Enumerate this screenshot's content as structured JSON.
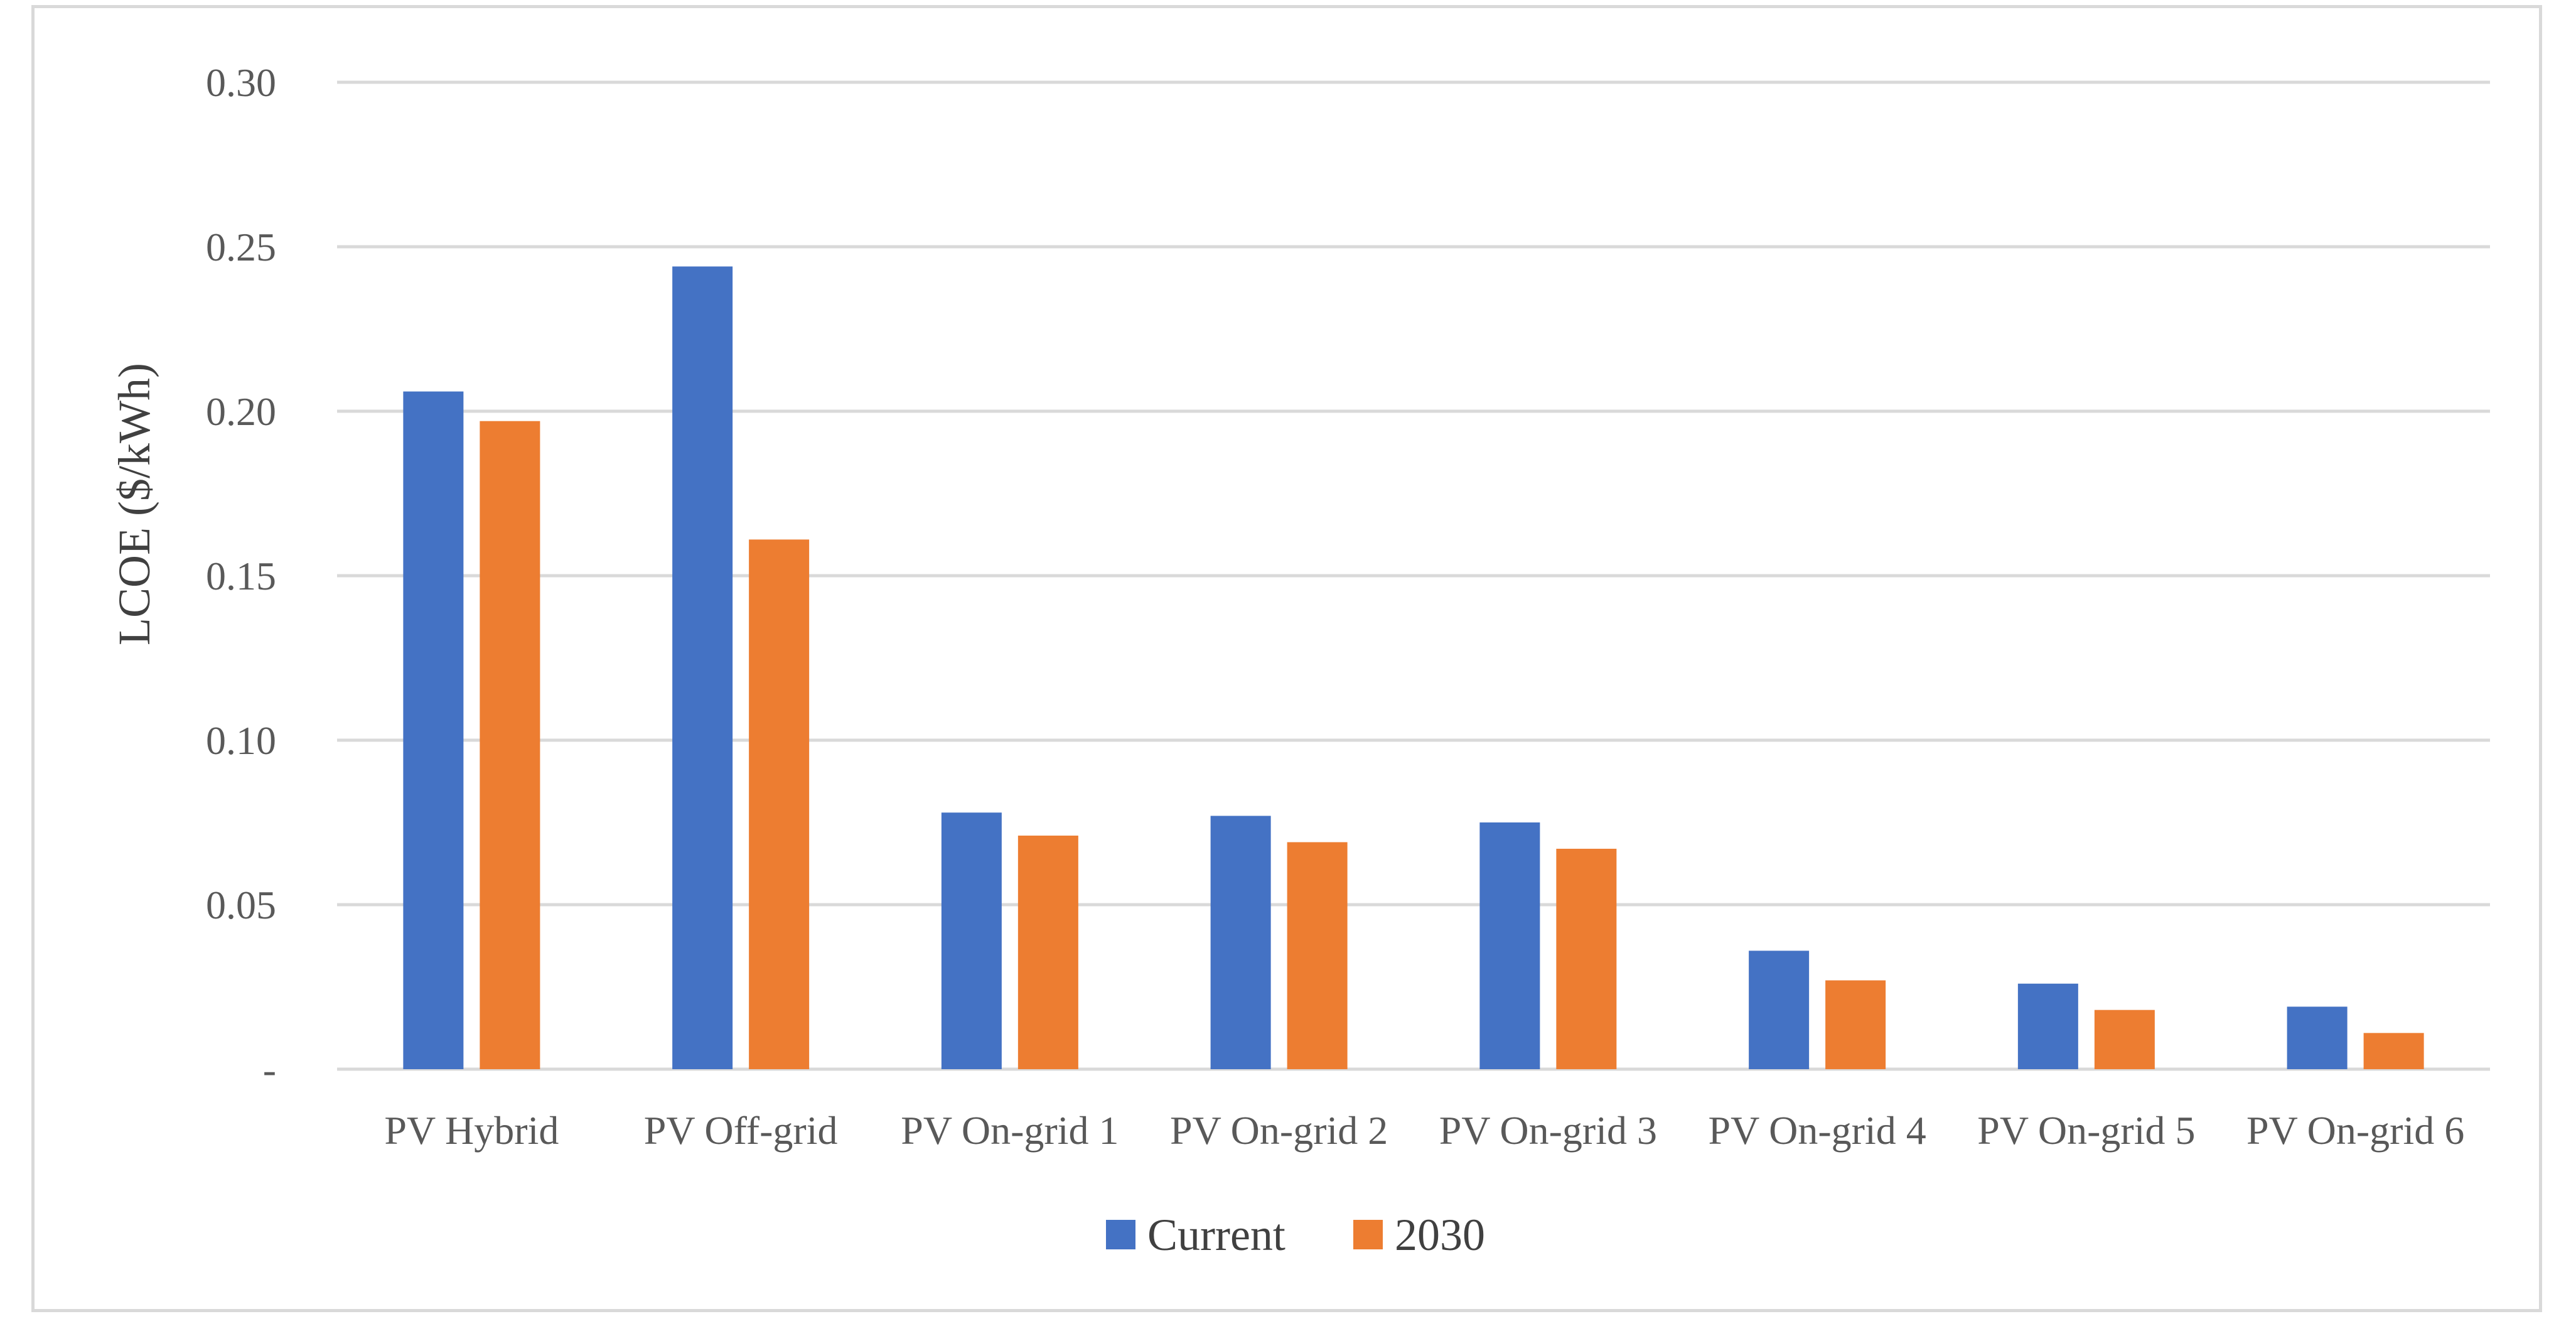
{
  "chart_data": {
    "type": "bar",
    "title": "",
    "xlabel": "",
    "ylabel": "LCOE ($/kWh)",
    "ylim": [
      0,
      0.3
    ],
    "yticks": [
      0,
      0.05,
      0.1,
      0.15,
      0.2,
      0.25,
      0.3
    ],
    "ytick_labels": [
      "-",
      "0.05",
      "0.10",
      "0.15",
      "0.20",
      "0.25",
      "0.30"
    ],
    "grid": true,
    "legend_position": "bottom",
    "categories": [
      "PV Hybrid",
      "PV Off-grid",
      "PV On-grid 1",
      "PV On-grid 2",
      "PV On-grid 3",
      "PV On-grid 4",
      "PV On-grid 5",
      "PV On-grid 6"
    ],
    "series": [
      {
        "name": "Current",
        "color": "#4472c4",
        "values": [
          0.206,
          0.244,
          0.078,
          0.077,
          0.075,
          0.036,
          0.026,
          0.019
        ]
      },
      {
        "name": "2030",
        "color": "#ed7d31",
        "values": [
          0.197,
          0.161,
          0.071,
          0.069,
          0.067,
          0.027,
          0.018,
          0.011
        ]
      }
    ]
  }
}
